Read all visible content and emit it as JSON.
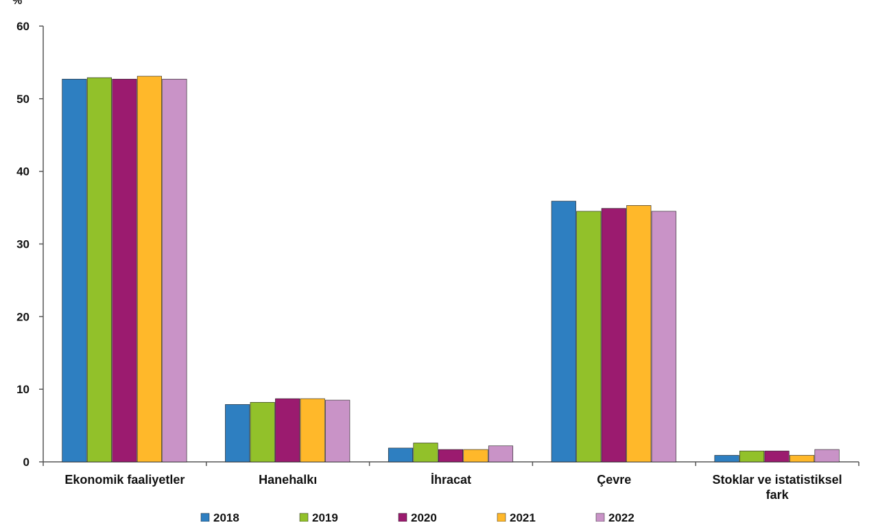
{
  "chart_data": {
    "type": "bar",
    "unit_label": "%",
    "categories": [
      "Ekonomik faaliyetler",
      "Hanehalkı",
      "İhracat",
      "Çevre",
      "Stoklar ve istatistiksel fark"
    ],
    "series": [
      {
        "name": "2018",
        "color": "#2e7fc1",
        "values": [
          52.7,
          7.9,
          1.9,
          35.9,
          0.9
        ]
      },
      {
        "name": "2019",
        "color": "#92c12a",
        "values": [
          52.9,
          8.2,
          2.6,
          34.5,
          1.5
        ]
      },
      {
        "name": "2020",
        "color": "#9b1b6f",
        "values": [
          52.7,
          8.7,
          1.7,
          34.9,
          1.5
        ]
      },
      {
        "name": "2021",
        "color": "#ffb82a",
        "values": [
          53.1,
          8.7,
          1.7,
          35.3,
          0.9
        ]
      },
      {
        "name": "2022",
        "color": "#c993c7",
        "values": [
          52.7,
          8.5,
          2.2,
          34.5,
          1.7
        ]
      }
    ],
    "yticks": [
      "0",
      "10",
      "20",
      "30",
      "40",
      "50",
      "60"
    ],
    "ylim": [
      0,
      60
    ],
    "grid": false,
    "legend_position": "bottom"
  }
}
